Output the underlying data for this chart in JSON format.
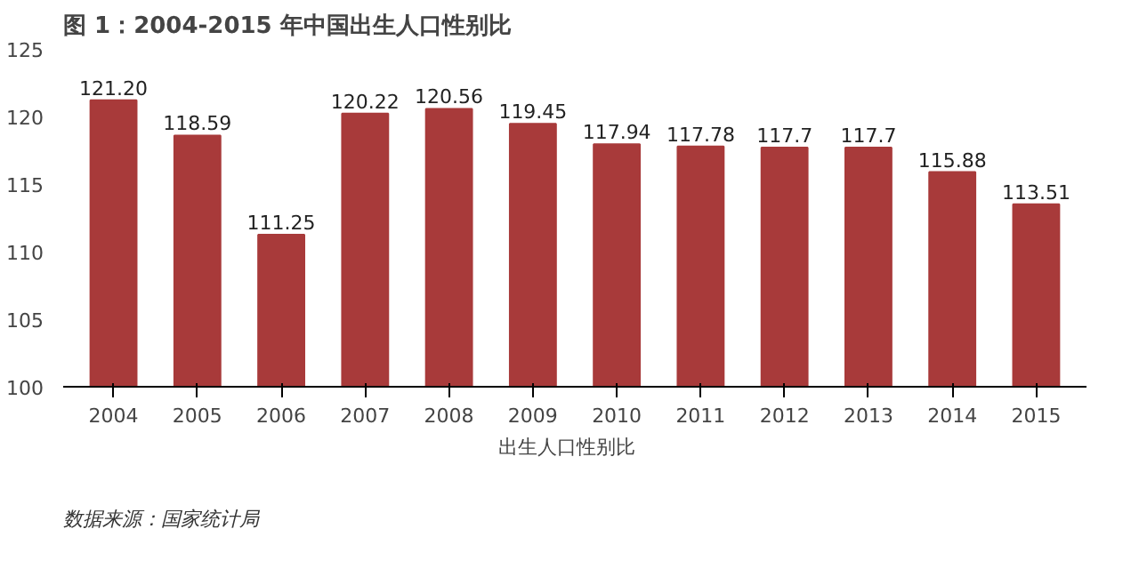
{
  "chart_data": {
    "type": "bar",
    "title": "图 1：2004-2015 年中国出生人口性别比",
    "categories": [
      "2004",
      "2005",
      "2006",
      "2007",
      "2008",
      "2009",
      "2010",
      "2011",
      "2012",
      "2013",
      "2014",
      "2015"
    ],
    "series": [
      {
        "name": "出生人口性别比",
        "color": "#a83a3a",
        "values": [
          121.2,
          118.59,
          111.25,
          120.22,
          120.56,
          119.45,
          117.94,
          117.78,
          117.7,
          117.7,
          115.88,
          113.51
        ],
        "value_labels": [
          "121.20",
          "118.59",
          "111.25",
          "120.22",
          "120.56",
          "119.45",
          "117.94",
          "117.78",
          "117.7",
          "117.7",
          "115.88",
          "113.51"
        ]
      }
    ],
    "ylim": [
      100,
      125
    ],
    "yticks": [
      100,
      105,
      110,
      115,
      120,
      125
    ],
    "grid": false,
    "legend": "bottom",
    "annotations": [
      "数据来源：国家统计局"
    ]
  }
}
